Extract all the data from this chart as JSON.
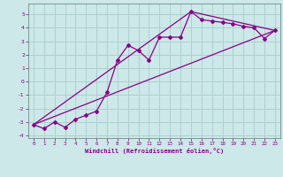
{
  "bg_color": "#cce8e8",
  "grid_color": "#aacccc",
  "line_color": "#880088",
  "marker": "D",
  "markersize": 2,
  "linewidth": 0.9,
  "xlabel": "Windchill (Refroidissement éolien,°C)",
  "xlim": [
    -0.5,
    23.5
  ],
  "ylim": [
    -4.2,
    5.8
  ],
  "yticks": [
    -4,
    -3,
    -2,
    -1,
    0,
    1,
    2,
    3,
    4,
    5
  ],
  "xticks": [
    0,
    1,
    2,
    3,
    4,
    5,
    6,
    7,
    8,
    9,
    10,
    11,
    12,
    13,
    14,
    15,
    16,
    17,
    18,
    19,
    20,
    21,
    22,
    23
  ],
  "series1_x": [
    0,
    1,
    2,
    3,
    4,
    5,
    6,
    7,
    8,
    9,
    10,
    11,
    12,
    13,
    14,
    15,
    16,
    17,
    18,
    19,
    20,
    21,
    22,
    23
  ],
  "series1_y": [
    -3.2,
    -3.5,
    -3.0,
    -3.4,
    -2.8,
    -2.5,
    -2.2,
    -0.8,
    1.6,
    2.7,
    2.3,
    1.6,
    3.3,
    3.3,
    3.3,
    5.2,
    4.6,
    4.5,
    4.4,
    4.3,
    4.1,
    4.0,
    3.2,
    3.8
  ],
  "series2_x": [
    0,
    23
  ],
  "series2_y": [
    -3.2,
    3.8
  ],
  "series3_x": [
    0,
    15,
    23
  ],
  "series3_y": [
    -3.2,
    5.2,
    3.8
  ]
}
